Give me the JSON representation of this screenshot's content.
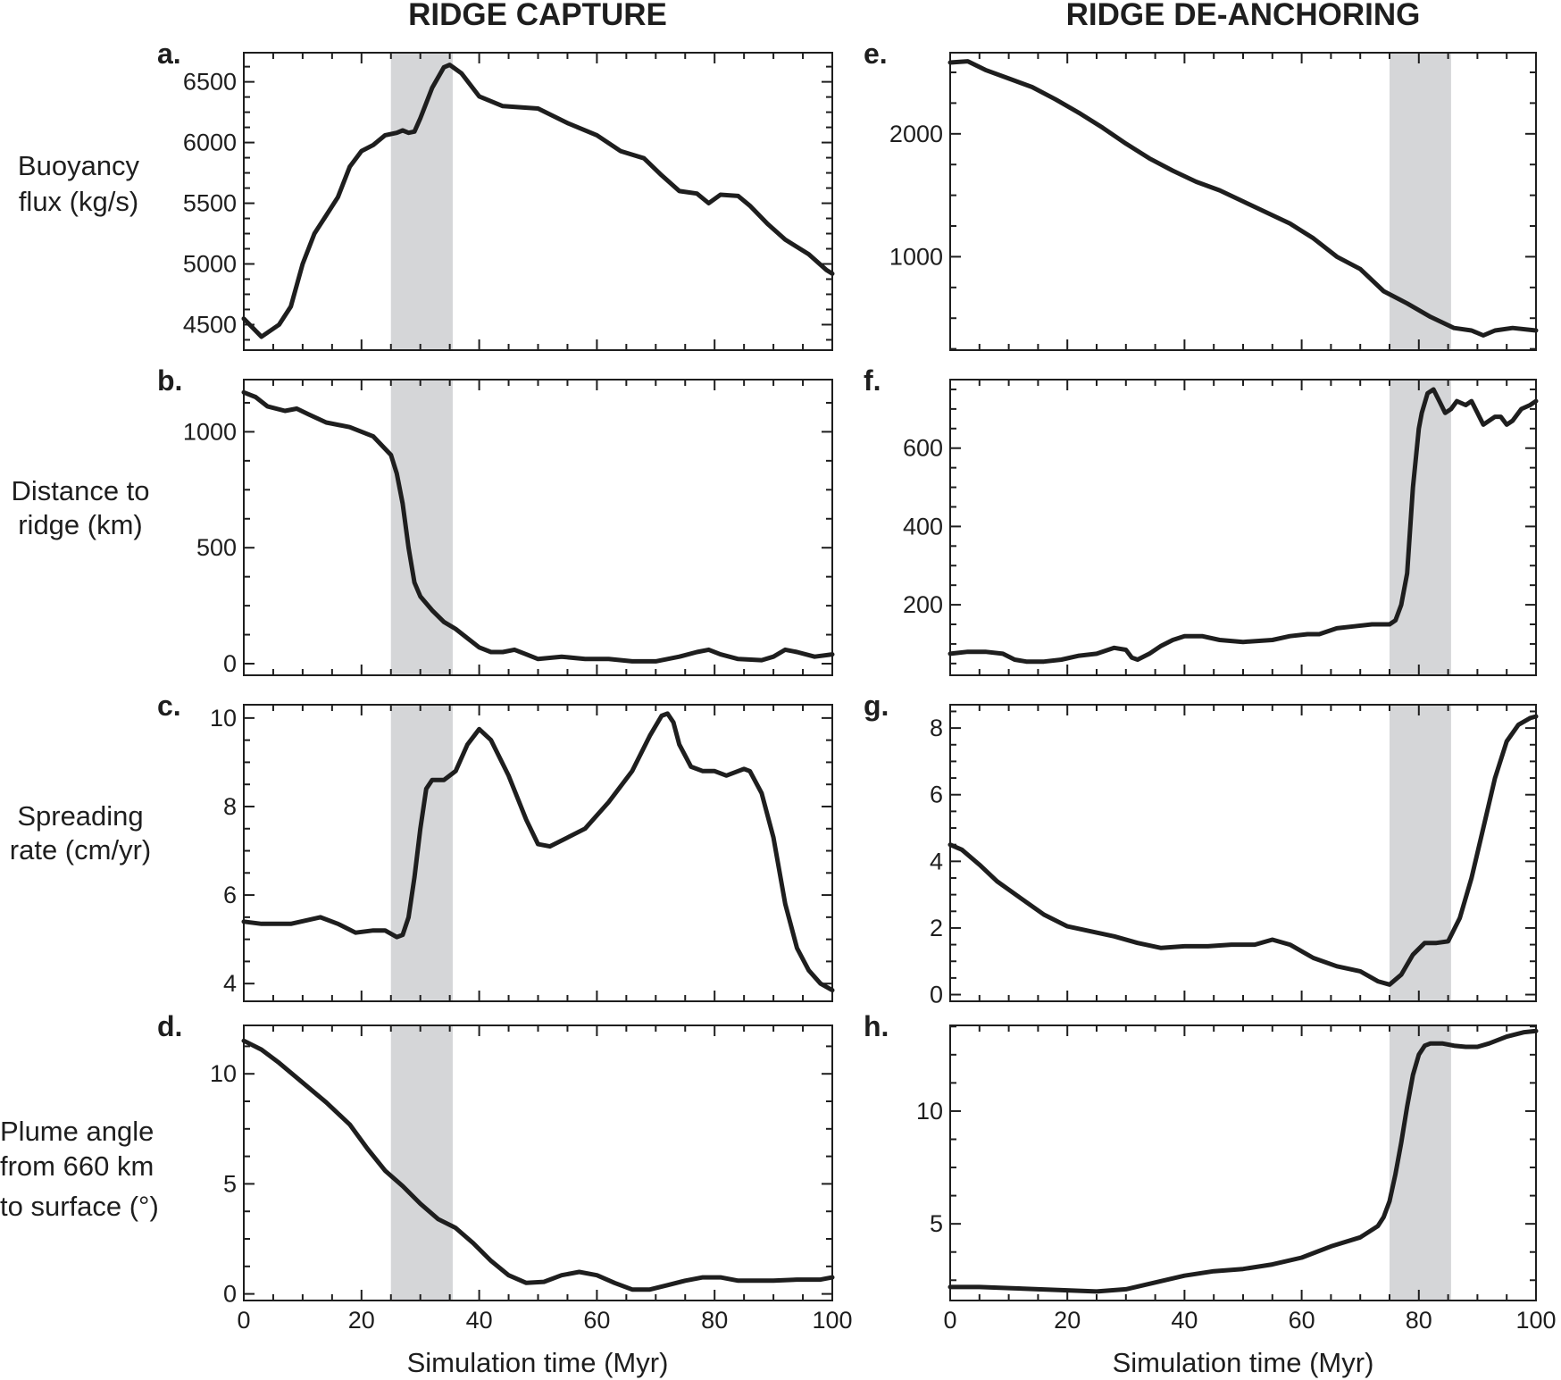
{
  "columns": [
    {
      "title": "RIDGE CAPTURE"
    },
    {
      "title": "RIDGE DE-ANCHORING"
    }
  ],
  "row_labels": [
    [
      "Buoyancy",
      "flux (kg/s)"
    ],
    [
      "Distance to",
      "ridge (km)"
    ],
    [
      "Spreading",
      "rate (cm/yr)"
    ],
    [
      "Plume angle",
      "from 660 km",
      "to surface (°)"
    ]
  ],
  "x_axis_label": "Simulation time (Myr)",
  "colors": {
    "line": "#1e1e1e",
    "shade": "#d5d6d8",
    "frame": "#1e1e1e"
  },
  "chart_data": [
    {
      "panel": "a.",
      "type": "line",
      "column": 0,
      "row": 0,
      "xlim": [
        0,
        100
      ],
      "ylim": [
        4290,
        6740
      ],
      "xticks": [
        0,
        20,
        40,
        60,
        80,
        100
      ],
      "yticks": [
        4500,
        5000,
        5500,
        6000,
        6500
      ],
      "yticklabels": [
        "4500",
        "5000",
        "5500",
        "6000",
        "6500"
      ],
      "shaded_interval": [
        25,
        35.5
      ],
      "x": [
        0,
        3,
        6,
        8,
        10,
        12,
        14,
        16,
        18,
        20,
        22,
        24,
        26,
        27,
        28,
        29,
        30,
        32,
        34,
        35,
        37,
        40,
        44,
        50,
        55,
        60,
        64,
        68,
        71,
        74,
        77,
        79,
        81,
        84,
        86,
        89,
        92,
        96,
        99,
        100
      ],
      "y": [
        4550,
        4400,
        4500,
        4650,
        5000,
        5250,
        5400,
        5550,
        5800,
        5930,
        5980,
        6060,
        6080,
        6100,
        6080,
        6090,
        6200,
        6450,
        6620,
        6640,
        6570,
        6380,
        6300,
        6280,
        6160,
        6060,
        5930,
        5870,
        5730,
        5600,
        5580,
        5500,
        5570,
        5560,
        5480,
        5330,
        5200,
        5080,
        4950,
        4920
      ]
    },
    {
      "panel": "b.",
      "type": "line",
      "column": 0,
      "row": 1,
      "xlim": [
        0,
        100
      ],
      "ylim": [
        -50,
        1225
      ],
      "xticks": [
        0,
        20,
        40,
        60,
        80,
        100
      ],
      "yticks": [
        0,
        500,
        1000
      ],
      "yticklabels": [
        "0",
        "500",
        "1000"
      ],
      "shaded_interval": [
        25,
        35.5
      ],
      "x": [
        0,
        2,
        4,
        7,
        9,
        11,
        14,
        18,
        22,
        25,
        26,
        27,
        28,
        29,
        30,
        32,
        34,
        36,
        38,
        40,
        42,
        44,
        46,
        48,
        50,
        54,
        58,
        62,
        66,
        70,
        74,
        77,
        79,
        81,
        84,
        88,
        90,
        92,
        94,
        97,
        100
      ],
      "y": [
        1170,
        1150,
        1110,
        1090,
        1100,
        1075,
        1040,
        1020,
        980,
        900,
        820,
        690,
        500,
        350,
        290,
        230,
        180,
        150,
        110,
        70,
        50,
        50,
        60,
        40,
        20,
        30,
        20,
        20,
        10,
        10,
        30,
        50,
        60,
        40,
        20,
        15,
        30,
        60,
        50,
        30,
        40
      ]
    },
    {
      "panel": "c.",
      "type": "line",
      "column": 0,
      "row": 2,
      "xlim": [
        0,
        100
      ],
      "ylim": [
        3.6,
        10.3
      ],
      "xticks": [
        0,
        20,
        40,
        60,
        80,
        100
      ],
      "yticks": [
        4,
        6,
        8,
        10
      ],
      "yticklabels": [
        "4",
        "6",
        "8",
        "10"
      ],
      "shaded_interval": [
        25,
        35.5
      ],
      "x": [
        0,
        3,
        8,
        13,
        16,
        19,
        22,
        24,
        26,
        27,
        28,
        29,
        30,
        31,
        32,
        34,
        36,
        38,
        40,
        42,
        45,
        48,
        50,
        52,
        55,
        58,
        62,
        66,
        69,
        71,
        72,
        73,
        74,
        76,
        78,
        80,
        82,
        84,
        85,
        86,
        88,
        90,
        92,
        94,
        96,
        98,
        100
      ],
      "y": [
        5.4,
        5.35,
        5.35,
        5.5,
        5.35,
        5.15,
        5.2,
        5.2,
        5.05,
        5.1,
        5.5,
        6.4,
        7.5,
        8.4,
        8.6,
        8.6,
        8.8,
        9.4,
        9.75,
        9.5,
        8.7,
        7.7,
        7.15,
        7.1,
        7.3,
        7.5,
        8.1,
        8.8,
        9.6,
        10.05,
        10.1,
        9.9,
        9.4,
        8.9,
        8.8,
        8.8,
        8.7,
        8.8,
        8.85,
        8.8,
        8.3,
        7.3,
        5.8,
        4.8,
        4.3,
        4.0,
        3.85
      ]
    },
    {
      "panel": "d.",
      "type": "line",
      "column": 0,
      "row": 3,
      "xlim": [
        0,
        100
      ],
      "ylim": [
        -0.3,
        12.2
      ],
      "xticks": [
        0,
        20,
        40,
        60,
        80,
        100
      ],
      "yticks": [
        0,
        5,
        10
      ],
      "yticklabels": [
        "0",
        "5",
        "10"
      ],
      "shaded_interval": [
        25,
        35.5
      ],
      "x": [
        0,
        3,
        6,
        10,
        14,
        18,
        21,
        24,
        27,
        30,
        33,
        36,
        39,
        42,
        45,
        48,
        51,
        54,
        57,
        60,
        63,
        66,
        69,
        72,
        75,
        78,
        81,
        84,
        87,
        90,
        94,
        98,
        100
      ],
      "y": [
        11.5,
        11.1,
        10.5,
        9.6,
        8.7,
        7.7,
        6.6,
        5.6,
        4.9,
        4.1,
        3.4,
        3.0,
        2.3,
        1.5,
        0.85,
        0.5,
        0.55,
        0.85,
        1.0,
        0.85,
        0.5,
        0.2,
        0.2,
        0.4,
        0.6,
        0.75,
        0.75,
        0.6,
        0.6,
        0.6,
        0.65,
        0.65,
        0.75
      ]
    },
    {
      "panel": "e.",
      "type": "line",
      "column": 1,
      "row": 0,
      "xlim": [
        0,
        100
      ],
      "ylim": [
        240,
        2660
      ],
      "xticks": [
        0,
        20,
        40,
        60,
        80,
        100
      ],
      "yticks": [
        1000,
        2000
      ],
      "yticklabels": [
        "1000",
        "2000"
      ],
      "shaded_interval": [
        75,
        85.5
      ],
      "x": [
        0,
        3,
        6,
        10,
        14,
        18,
        22,
        26,
        30,
        34,
        38,
        42,
        46,
        50,
        54,
        58,
        62,
        66,
        70,
        74,
        78,
        82,
        86,
        89,
        91,
        93,
        96,
        100
      ],
      "y": [
        2580,
        2590,
        2520,
        2450,
        2380,
        2280,
        2170,
        2050,
        1920,
        1800,
        1700,
        1610,
        1540,
        1450,
        1360,
        1270,
        1150,
        1000,
        900,
        720,
        620,
        510,
        420,
        400,
        360,
        400,
        420,
        400
      ]
    },
    {
      "panel": "f.",
      "type": "line",
      "column": 1,
      "row": 1,
      "xlim": [
        0,
        100
      ],
      "ylim": [
        20,
        775
      ],
      "xticks": [
        0,
        20,
        40,
        60,
        80,
        100
      ],
      "yticks": [
        200,
        400,
        600
      ],
      "yticklabels": [
        "200",
        "400",
        "600"
      ],
      "shaded_interval": [
        75,
        85.5
      ],
      "x": [
        0,
        3,
        6,
        9,
        11,
        13,
        16,
        19,
        22,
        25,
        28,
        30,
        31,
        32,
        34,
        36,
        38,
        40,
        43,
        46,
        50,
        55,
        58,
        61,
        63,
        66,
        69,
        72,
        75,
        76,
        77,
        78,
        79,
        80,
        80.5,
        81.5,
        82.5,
        83.5,
        84.5,
        85.5,
        86.5,
        88,
        89,
        91,
        93,
        94,
        95,
        96,
        97.5,
        99,
        100
      ],
      "y": [
        75,
        80,
        80,
        75,
        60,
        55,
        55,
        60,
        70,
        75,
        90,
        85,
        65,
        60,
        75,
        95,
        110,
        120,
        120,
        110,
        105,
        110,
        120,
        125,
        125,
        140,
        145,
        150,
        150,
        160,
        200,
        280,
        500,
        650,
        690,
        740,
        750,
        720,
        690,
        700,
        720,
        710,
        720,
        660,
        680,
        680,
        660,
        670,
        700,
        710,
        720
      ]
    },
    {
      "panel": "g.",
      "type": "line",
      "column": 1,
      "row": 2,
      "xlim": [
        0,
        100
      ],
      "ylim": [
        -0.2,
        8.7
      ],
      "xticks": [
        0,
        20,
        40,
        60,
        80,
        100
      ],
      "yticks": [
        0,
        2,
        4,
        6,
        8
      ],
      "yticklabels": [
        "0",
        "2",
        "4",
        "6",
        "8"
      ],
      "shaded_interval": [
        75,
        85.5
      ],
      "x": [
        0,
        2,
        5,
        8,
        12,
        16,
        20,
        24,
        28,
        32,
        36,
        40,
        44,
        48,
        52,
        55,
        58,
        62,
        66,
        70,
        73,
        75,
        77,
        79,
        81,
        83,
        85,
        87,
        89,
        91,
        93,
        95,
        97,
        99,
        100
      ],
      "y": [
        4.5,
        4.35,
        3.9,
        3.4,
        2.9,
        2.4,
        2.05,
        1.9,
        1.75,
        1.55,
        1.4,
        1.45,
        1.45,
        1.5,
        1.5,
        1.65,
        1.5,
        1.1,
        0.85,
        0.7,
        0.4,
        0.3,
        0.6,
        1.2,
        1.55,
        1.55,
        1.6,
        2.3,
        3.5,
        5.0,
        6.5,
        7.6,
        8.1,
        8.3,
        8.35
      ]
    },
    {
      "panel": "h.",
      "type": "line",
      "column": 1,
      "row": 3,
      "xlim": [
        0,
        100
      ],
      "ylim": [
        1.6,
        13.8
      ],
      "xticks": [
        0,
        20,
        40,
        60,
        80,
        100
      ],
      "yticks": [
        5,
        10
      ],
      "yticklabels": [
        "5",
        "10"
      ],
      "shaded_interval": [
        75,
        85.5
      ],
      "x": [
        0,
        5,
        10,
        15,
        20,
        25,
        30,
        35,
        40,
        45,
        50,
        55,
        60,
        65,
        70,
        73,
        74,
        75,
        76,
        77,
        78,
        79,
        80,
        81,
        82,
        83,
        84,
        86,
        88,
        90,
        92,
        95,
        98,
        100
      ],
      "y": [
        2.2,
        2.2,
        2.15,
        2.1,
        2.05,
        2.0,
        2.1,
        2.4,
        2.7,
        2.9,
        3.0,
        3.2,
        3.5,
        4.0,
        4.4,
        4.9,
        5.3,
        6.0,
        7.2,
        8.6,
        10.2,
        11.6,
        12.5,
        12.9,
        13.0,
        13.0,
        13.0,
        12.9,
        12.85,
        12.85,
        13.0,
        13.3,
        13.5,
        13.55
      ]
    }
  ]
}
